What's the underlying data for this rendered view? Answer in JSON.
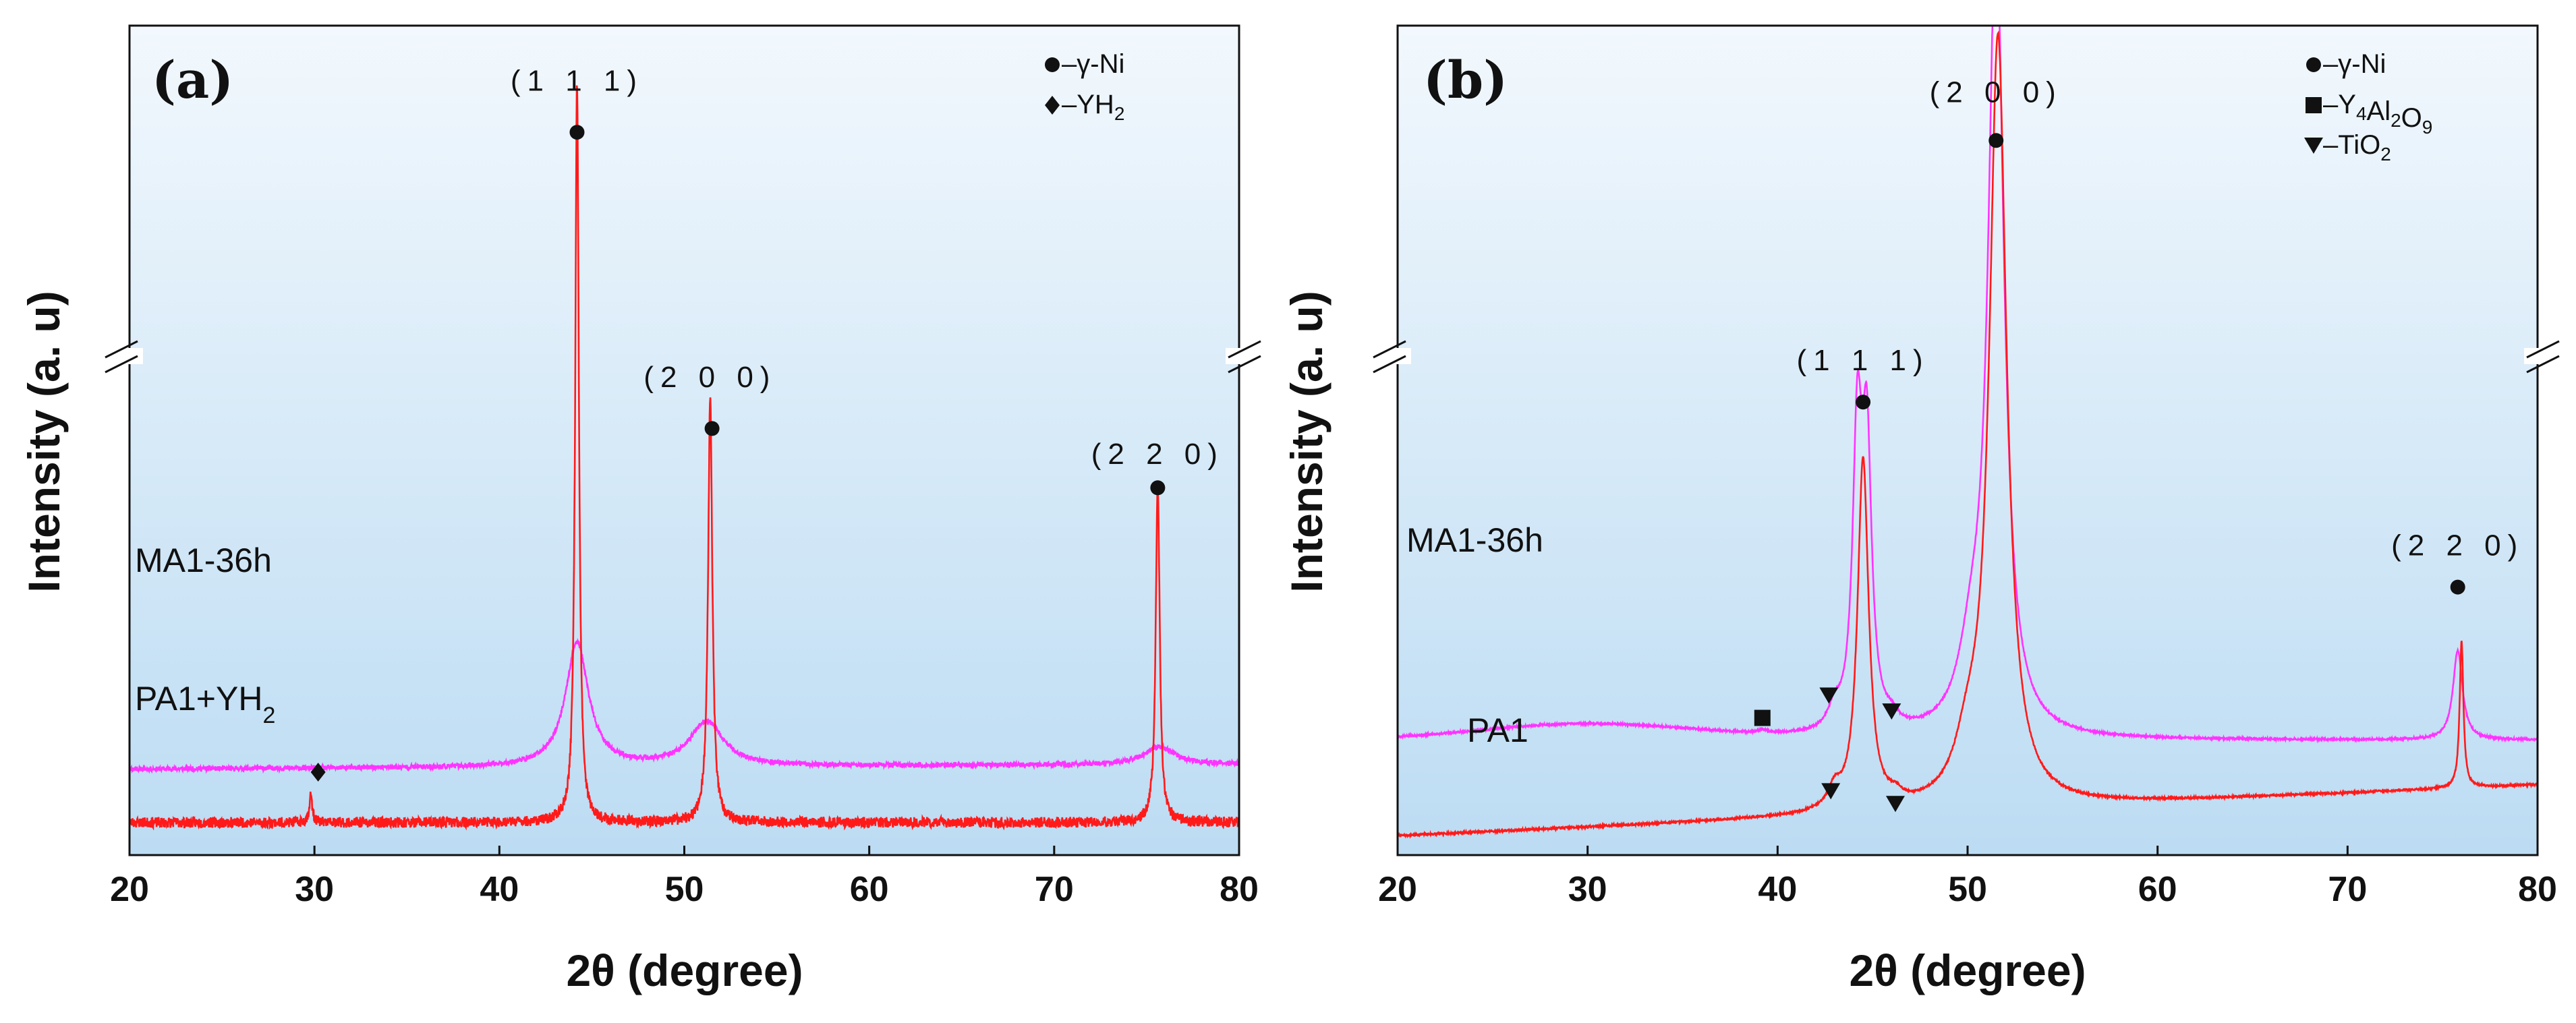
{
  "chart_data": [
    {
      "type": "line",
      "panel_label": "(a)",
      "xlabel": "2θ (degree)",
      "ylabel": "Intensity (a. u)",
      "xlim": [
        20,
        80
      ],
      "xticks": [
        "20",
        "30",
        "40",
        "50",
        "60",
        "70",
        "80"
      ],
      "grid": false,
      "axis_break": true,
      "legend_position": "top-right",
      "legend": [
        {
          "symbol": "circle",
          "text": "–γ-Ni",
          "sub": ""
        },
        {
          "symbol": "diamond",
          "text": "–YH",
          "sub": "2"
        }
      ],
      "series": [
        {
          "name": "MA1-36h",
          "label_main": "MA1-36h",
          "label_sub": "",
          "color": "#ff33ff",
          "baseline": 1.45,
          "noise": 0.04,
          "drift": 0.08,
          "seed": 11,
          "peaks": [
            {
              "x": 44.2,
              "h": 2.1,
              "w": 0.75
            },
            {
              "x": 51.2,
              "h": 0.75,
              "w": 1.1
            },
            {
              "x": 75.7,
              "h": 0.3,
              "w": 1.0
            }
          ]
        },
        {
          "name": "PA1+YH2",
          "label_main": "PA1+YH",
          "label_sub": "2",
          "color": "#ff1a1a",
          "baseline": 0.55,
          "noise": 0.09,
          "drift": 0.0,
          "seed": 23,
          "peaks": [
            {
              "x": 44.2,
              "h": 12.5,
              "w": 0.12
            },
            {
              "x": 51.4,
              "h": 7.1,
              "w": 0.14
            },
            {
              "x": 75.6,
              "h": 5.7,
              "w": 0.13
            },
            {
              "x": 29.8,
              "h": 0.45,
              "w": 0.1
            }
          ]
        }
      ],
      "annotations": [
        {
          "kind": "hkl",
          "text": "(1 1 1)",
          "x": 44.2,
          "y": 12.9
        },
        {
          "kind": "hkl",
          "text": "(2 0 0)",
          "x": 51.4,
          "y": 7.9
        },
        {
          "kind": "hkl",
          "text": "(2 2 0)",
          "x": 75.6,
          "y": 6.6
        },
        {
          "kind": "circle",
          "x": 44.2,
          "y": 12.2
        },
        {
          "kind": "circle",
          "x": 51.5,
          "y": 7.2
        },
        {
          "kind": "circle",
          "x": 75.6,
          "y": 6.2
        },
        {
          "kind": "diamond",
          "x": 30.2,
          "y": 1.4
        }
      ]
    },
    {
      "type": "line",
      "panel_label": "(b)",
      "xlabel": "2θ (degree)",
      "ylabel": "Intensity (a. u)",
      "xlim": [
        20,
        80
      ],
      "xticks": [
        "20",
        "30",
        "40",
        "50",
        "60",
        "70",
        "80"
      ],
      "grid": false,
      "axis_break": true,
      "legend_position": "top-right",
      "legend": [
        {
          "symbol": "circle",
          "text": "–γ-Ni",
          "sub": ""
        },
        {
          "symbol": "square",
          "text": "–Y",
          "sub": "4",
          "text2": "Al",
          "sub2": "2",
          "text3": "O",
          "sub3": "9"
        },
        {
          "symbol": "triangle",
          "text": "–TiO",
          "sub": "2"
        }
      ],
      "series": [
        {
          "name": "MA1-36h",
          "label_main": "MA1-36h",
          "label_sub": "",
          "color": "#ff33ff",
          "baseline": 1.8,
          "noise": 0.015,
          "drift": 0.0,
          "seed": 5,
          "hump": {
            "x": 30,
            "h": 0.25,
            "w": 8
          },
          "peaks": [
            {
              "x": 44.2,
              "h": 4.5,
              "w": 0.3
            },
            {
              "x": 44.7,
              "h": 4.2,
              "w": 0.3
            },
            {
              "x": 51.5,
              "h": 12.5,
              "w": 0.5
            },
            {
              "x": 50.2,
              "h": 1.0,
              "w": 0.8
            },
            {
              "x": 75.8,
              "h": 1.4,
              "w": 0.3
            },
            {
              "x": 43.0,
              "h": 0.3,
              "w": 0.4
            },
            {
              "x": 46.0,
              "h": 0.15,
              "w": 0.4
            },
            {
              "x": 39.2,
              "h": 0.05,
              "w": 0.3
            }
          ]
        },
        {
          "name": "PA1",
          "label_main": "PA1",
          "label_sub": "",
          "color": "#ff1a1a",
          "baseline": 0.3,
          "noise": 0.015,
          "drift": 0.8,
          "seed": 7,
          "peaks": [
            {
              "x": 44.5,
              "h": 5.5,
              "w": 0.35
            },
            {
              "x": 51.6,
              "h": 12.0,
              "w": 0.55
            },
            {
              "x": 50.0,
              "h": 0.7,
              "w": 0.8
            },
            {
              "x": 76.0,
              "h": 2.3,
              "w": 0.12
            },
            {
              "x": 43.0,
              "h": 0.3,
              "w": 0.4
            },
            {
              "x": 46.2,
              "h": 0.12,
              "w": 0.4
            }
          ]
        }
      ],
      "annotations": [
        {
          "kind": "hkl",
          "text": "(2 0 0)",
          "x": 51.5,
          "y": 11.8
        },
        {
          "kind": "hkl",
          "text": "(1 1 1)",
          "x": 44.5,
          "y": 7.6
        },
        {
          "kind": "hkl",
          "text": "(2 2 0)",
          "x": 75.8,
          "y": 4.7
        },
        {
          "kind": "circle",
          "x": 51.5,
          "y": 11.2
        },
        {
          "kind": "circle",
          "x": 44.5,
          "y": 7.1
        },
        {
          "kind": "circle",
          "x": 75.8,
          "y": 4.2
        },
        {
          "kind": "square",
          "x": 39.2,
          "y": 2.15
        },
        {
          "kind": "triangle",
          "x": 42.7,
          "y": 2.5
        },
        {
          "kind": "triangle",
          "x": 46.0,
          "y": 2.25
        },
        {
          "kind": "triangle",
          "x": 42.8,
          "y": 1.0
        },
        {
          "kind": "triangle",
          "x": 46.2,
          "y": 0.8
        }
      ]
    }
  ]
}
